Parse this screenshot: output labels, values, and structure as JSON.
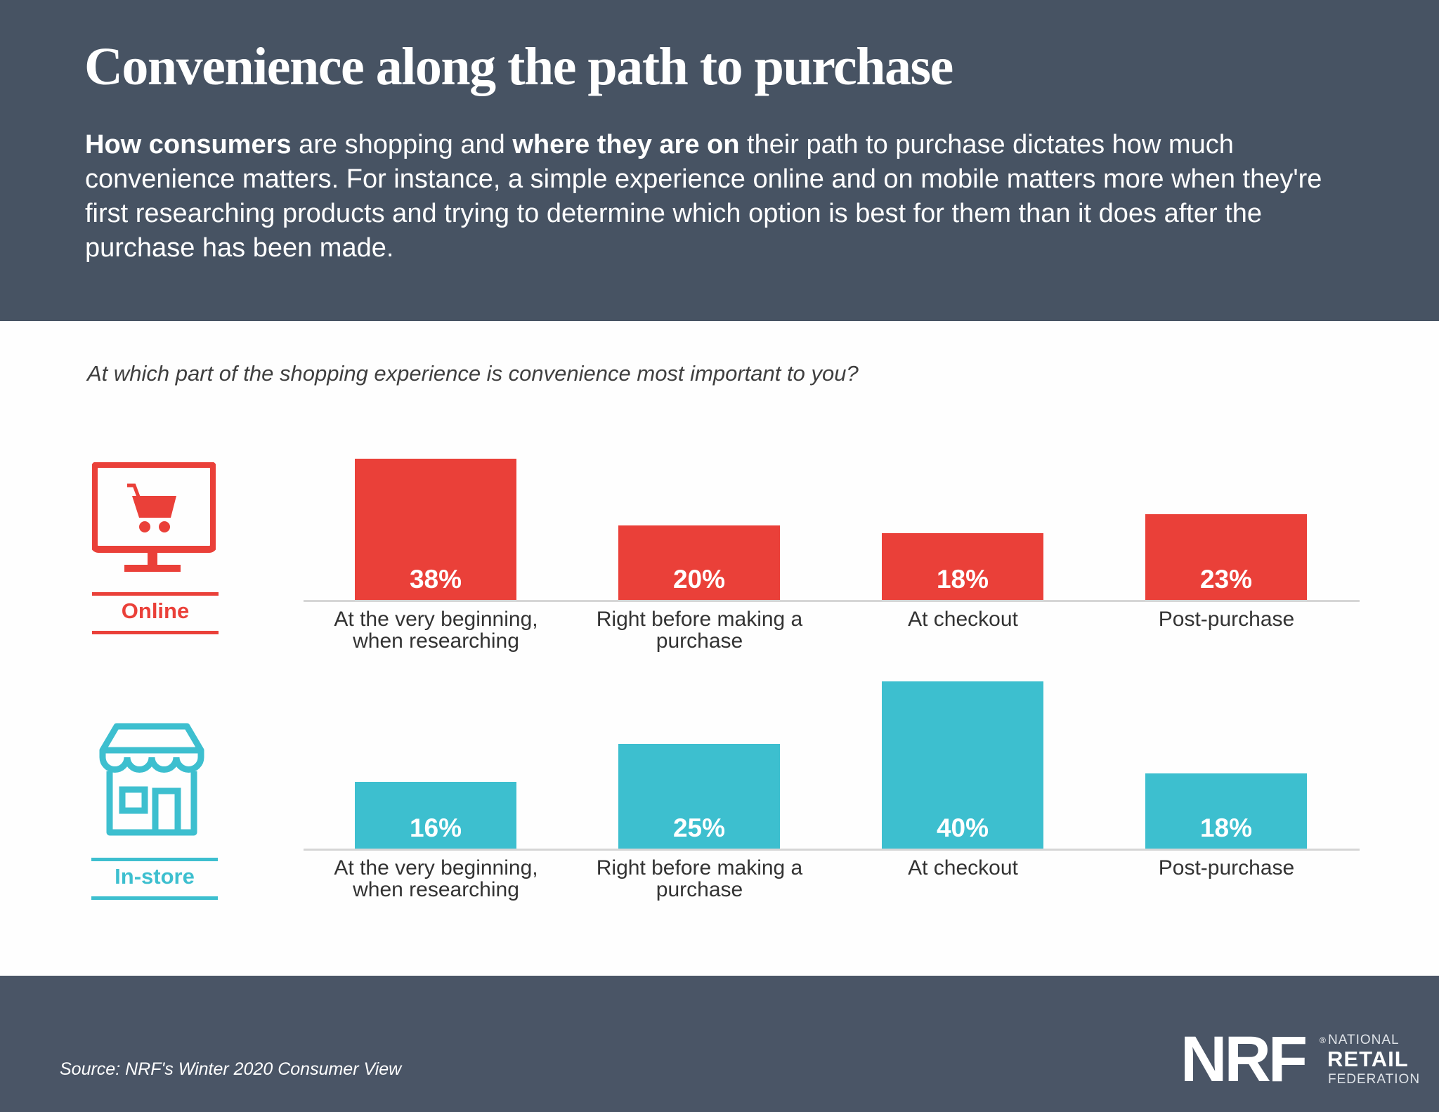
{
  "header": {
    "title": "Convenience along the path to purchase",
    "intro": {
      "bold1": "How consumers",
      "text1": " are shopping and ",
      "bold2": "where they are on",
      "text2": " their path to purchase dictates how much convenience matters. For instance, a simple experience online and on mobile matters more when they're first researching products and trying to determine which option is best for them than it does after the purchase has been made."
    }
  },
  "colors": {
    "online": "#ea4039",
    "instore": "#3dbfcf",
    "header_bg": "#475363",
    "footer_bg": "#4a5566"
  },
  "chart_data": {
    "type": "bar",
    "title": "At which part of the shopping experience is convenience most important to you?",
    "xlabel": "",
    "ylabel": "",
    "unit": "%",
    "categories": [
      "At the very beginning, when researching",
      "Right before making a purchase",
      "At checkout",
      "Post-purchase"
    ],
    "category_lines": [
      [
        "At the very beginning,",
        "when researching"
      ],
      [
        "Right before making a",
        "purchase"
      ],
      [
        "At checkout"
      ],
      [
        "Post-purchase"
      ]
    ],
    "series": [
      {
        "name": "Online",
        "icon": "monitor-shopping-cart-icon",
        "color": "#ea4039",
        "values": [
          38,
          20,
          18,
          23
        ],
        "labels": [
          "38%",
          "20%",
          "18%",
          "23%"
        ]
      },
      {
        "name": "In-store",
        "icon": "storefront-icon",
        "color": "#3dbfcf",
        "values": [
          16,
          25,
          40,
          18
        ],
        "labels": [
          "16%",
          "25%",
          "40%",
          "18%"
        ]
      }
    ],
    "grid": false,
    "legend": "left"
  },
  "footer": {
    "source": "Source: NRF's Winter 2020 Consumer View",
    "logo": {
      "mark": "NRF",
      "line1": "NATIONAL",
      "line2": "RETAIL",
      "line3": "FEDERATION"
    }
  }
}
